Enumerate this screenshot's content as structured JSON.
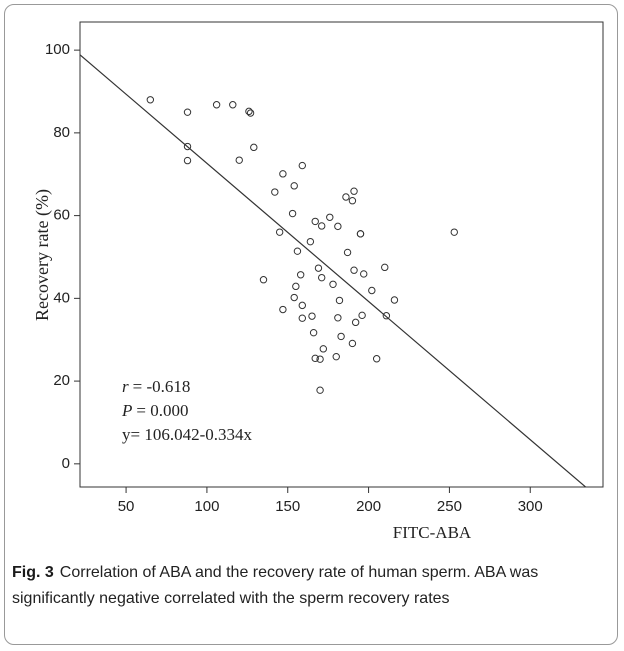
{
  "chart_data": {
    "type": "scatter",
    "xlabel": "FITC-ABA",
    "ylabel": "Recovery rate (%)",
    "xlim": [
      21.5,
      345
    ],
    "ylim": [
      -5.6,
      106.8
    ],
    "xticks": [
      50,
      100,
      150,
      200,
      250,
      300
    ],
    "yticks": [
      0,
      20,
      40,
      60,
      80,
      100
    ],
    "marker_color": "#333333",
    "line_color": "#333333",
    "x": [
      65,
      88,
      106,
      116,
      126,
      127,
      88,
      129,
      88,
      120,
      159,
      147,
      142,
      154,
      190,
      191,
      186,
      153,
      176,
      171,
      167,
      181,
      145,
      195,
      156,
      187,
      253,
      135,
      158,
      169,
      171,
      178,
      191,
      197,
      202,
      210,
      196,
      182,
      147,
      154,
      159,
      165,
      159,
      181,
      166,
      192,
      183,
      190,
      216,
      211,
      195,
      172,
      180,
      167,
      205,
      170,
      170,
      164,
      155
    ],
    "y": [
      88,
      85,
      86.8,
      86.8,
      85.2,
      84.8,
      76.7,
      76.5,
      73.3,
      73.4,
      72.1,
      70.1,
      65.7,
      67.2,
      63.6,
      65.9,
      64.5,
      60.5,
      59.6,
      57.5,
      58.6,
      57.4,
      56,
      55.6,
      51.4,
      51.1,
      56,
      44.5,
      45.7,
      47.3,
      45,
      43.4,
      46.8,
      45.9,
      41.9,
      47.5,
      35.9,
      39.5,
      37.3,
      40.2,
      38.3,
      35.7,
      35.2,
      35.3,
      31.7,
      34.2,
      30.8,
      29.1,
      39.6,
      35.8,
      55.6,
      27.8,
      25.9,
      25.5,
      25.4,
      25.3,
      17.8,
      53.7,
      42.9
    ],
    "regression": {
      "intercept": 106.042,
      "slope": -0.334
    },
    "annotations": [
      {
        "symbol": "r",
        "text": "= -0.618"
      },
      {
        "symbol": "P",
        "text": "= 0.000"
      },
      {
        "text": "y= 106.042-0.334x"
      }
    ]
  },
  "caption": {
    "label": "Fig. 3",
    "text": "Correlation of ABA and the recovery rate of human sperm. ABA was significantly negative correlated with the sperm recovery rates"
  }
}
